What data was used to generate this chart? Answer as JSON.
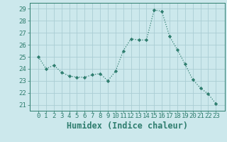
{
  "x": [
    0,
    1,
    2,
    3,
    4,
    5,
    6,
    7,
    8,
    9,
    10,
    11,
    12,
    13,
    14,
    15,
    16,
    17,
    18,
    19,
    20,
    21,
    22,
    23
  ],
  "y": [
    25.0,
    24.0,
    24.3,
    23.7,
    23.4,
    23.3,
    23.3,
    23.5,
    23.6,
    23.0,
    23.8,
    25.5,
    26.5,
    26.4,
    26.4,
    28.9,
    28.8,
    26.7,
    25.6,
    24.4,
    23.1,
    22.4,
    21.9,
    21.1
  ],
  "line_color": "#2e7d6e",
  "marker": "D",
  "marker_size": 2.2,
  "bg_color": "#cce8ec",
  "grid_color": "#aacdd4",
  "xlabel": "Humidex (Indice chaleur)",
  "ylabel": "",
  "ylim": [
    20.5,
    29.5
  ],
  "yticks": [
    21,
    22,
    23,
    24,
    25,
    26,
    27,
    28,
    29
  ],
  "xticks": [
    0,
    1,
    2,
    3,
    4,
    5,
    6,
    7,
    8,
    9,
    10,
    11,
    12,
    13,
    14,
    15,
    16,
    17,
    18,
    19,
    20,
    21,
    22,
    23
  ],
  "axis_color": "#2e7d6e",
  "tick_labelsize": 6.5,
  "xlabel_fontsize": 8.5
}
